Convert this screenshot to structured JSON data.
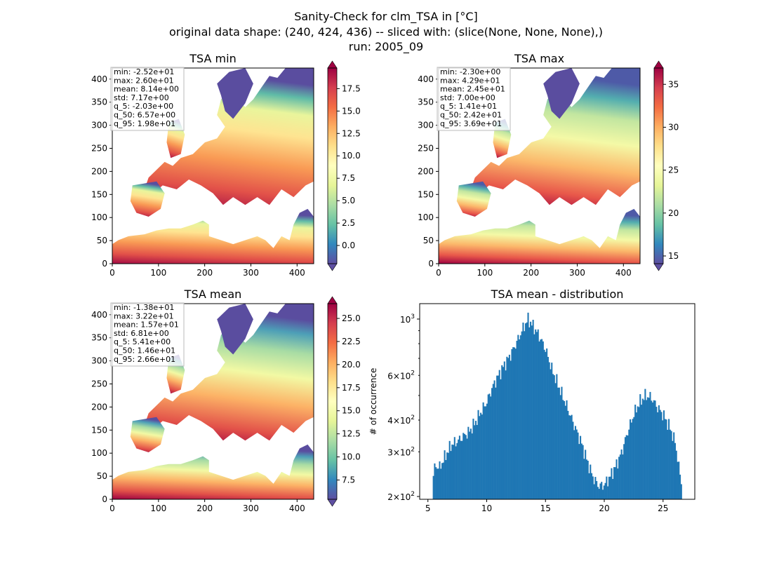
{
  "figure": {
    "title_lines": [
      "Sanity-Check for clm_TSA in [°C]",
      "original data shape: (240, 424, 436) -- sliced with: (slice(None, None, None),)",
      "run: 2005_09"
    ]
  },
  "chart_data": [
    {
      "type": "heatmap",
      "title": "TSA min",
      "colormap": "Spectral_r",
      "xlim": [
        0,
        436
      ],
      "ylim": [
        0,
        424
      ],
      "xticks": [
        "0",
        "100",
        "200",
        "300",
        "400"
      ],
      "yticks": [
        "0",
        "50",
        "100",
        "150",
        "200",
        "250",
        "300",
        "350",
        "400"
      ],
      "clim": [
        -2.03,
        19.8
      ],
      "colorbar_ticks": [
        "0.0",
        "2.5",
        "5.0",
        "7.5",
        "10.0",
        "12.5",
        "15.0",
        "17.5"
      ],
      "colorbar_tick_values": [
        0,
        2.5,
        5,
        7.5,
        10,
        12.5,
        15,
        17.5
      ],
      "stats": [
        "min: -2.52e+01",
        "max: 2.60e+01",
        "mean: 8.14e+00",
        "std: 7.17e+00",
        "q_5: -2.03e+00",
        "q_50: 6.57e+00",
        "q_95: 1.98e+01"
      ]
    },
    {
      "type": "heatmap",
      "title": "TSA max",
      "colormap": "Spectral_r",
      "xlim": [
        0,
        436
      ],
      "ylim": [
        0,
        424
      ],
      "xticks": [
        "0",
        "100",
        "200",
        "300",
        "400"
      ],
      "yticks": [
        "0",
        "50",
        "100",
        "150",
        "200",
        "250",
        "300",
        "350",
        "400"
      ],
      "clim": [
        14.1,
        36.9
      ],
      "colorbar_ticks": [
        "15",
        "20",
        "25",
        "30",
        "35"
      ],
      "colorbar_tick_values": [
        15,
        20,
        25,
        30,
        35
      ],
      "stats": [
        "min: -2.30e+00",
        "max: 4.29e+01",
        "mean: 2.45e+01",
        "std: 7.00e+00",
        "q_5: 1.41e+01",
        "q_50: 2.42e+01",
        "q_95: 3.69e+01"
      ]
    },
    {
      "type": "heatmap",
      "title": "TSA mean",
      "colormap": "Spectral_r",
      "xlim": [
        0,
        436
      ],
      "ylim": [
        0,
        424
      ],
      "xticks": [
        "0",
        "100",
        "200",
        "300",
        "400"
      ],
      "yticks": [
        "0",
        "50",
        "100",
        "150",
        "200",
        "250",
        "300",
        "350",
        "400"
      ],
      "clim": [
        5.41,
        26.6
      ],
      "colorbar_ticks": [
        "7.5",
        "10.0",
        "12.5",
        "15.0",
        "17.5",
        "20.0",
        "22.5",
        "25.0"
      ],
      "colorbar_tick_values": [
        7.5,
        10,
        12.5,
        15,
        17.5,
        20,
        22.5,
        25
      ],
      "stats": [
        "min: -1.38e+01",
        "max: 3.22e+01",
        "mean: 1.57e+01",
        "std: 6.81e+00",
        "q_5: 5.41e+00",
        "q_50: 1.46e+01",
        "q_95: 2.66e+01"
      ]
    },
    {
      "type": "histogram",
      "title": "TSA mean - distribution",
      "xlabel": "",
      "ylabel": "# of occurrence",
      "yscale": "log",
      "color": "#1f77b4",
      "xlim": [
        4.3,
        27.7
      ],
      "ylim": [
        195,
        1150
      ],
      "xticks": [
        5,
        10,
        15,
        20,
        25
      ],
      "yticks_major": [
        {
          "value": 200,
          "base": "2",
          "exp": "2"
        },
        {
          "value": 1000,
          "base": "10",
          "exp": "3"
        }
      ],
      "yticks_minor": [
        {
          "value": 300,
          "base": "3",
          "exp": "2"
        },
        {
          "value": 400,
          "base": "4",
          "exp": "2"
        },
        {
          "value": 600,
          "base": "6",
          "exp": "2"
        }
      ],
      "bin_centers_range": [
        5.41,
        26.6
      ],
      "histogram_profile": [
        [
          5.4,
          230
        ],
        [
          5.6,
          265
        ],
        [
          6.0,
          260
        ],
        [
          6.5,
          290
        ],
        [
          7.0,
          320
        ],
        [
          7.5,
          330
        ],
        [
          8.0,
          345
        ],
        [
          8.5,
          360
        ],
        [
          9.0,
          390
        ],
        [
          9.5,
          430
        ],
        [
          10.0,
          470
        ],
        [
          10.5,
          540
        ],
        [
          11.0,
          600
        ],
        [
          11.5,
          660
        ],
        [
          12.0,
          720
        ],
        [
          12.5,
          800
        ],
        [
          13.0,
          900
        ],
        [
          13.5,
          1000
        ],
        [
          14.0,
          930
        ],
        [
          14.5,
          850
        ],
        [
          15.0,
          760
        ],
        [
          15.5,
          640
        ],
        [
          16.0,
          560
        ],
        [
          16.5,
          490
        ],
        [
          17.0,
          430
        ],
        [
          17.5,
          375
        ],
        [
          18.0,
          330
        ],
        [
          18.5,
          280
        ],
        [
          19.0,
          240
        ],
        [
          19.5,
          220
        ],
        [
          20.0,
          222
        ],
        [
          20.5,
          240
        ],
        [
          21.0,
          265
        ],
        [
          21.5,
          300
        ],
        [
          22.0,
          360
        ],
        [
          22.5,
          420
        ],
        [
          23.0,
          470
        ],
        [
          23.5,
          500
        ],
        [
          24.0,
          490
        ],
        [
          24.5,
          450
        ],
        [
          25.0,
          420
        ],
        [
          25.5,
          380
        ],
        [
          26.0,
          330
        ],
        [
          26.5,
          230
        ]
      ]
    }
  ]
}
